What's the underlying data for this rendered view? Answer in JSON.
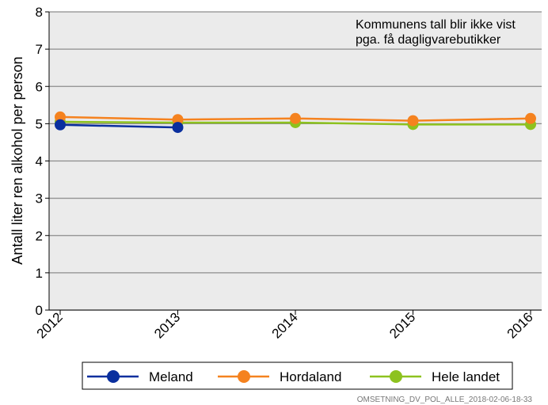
{
  "chart_data": {
    "type": "line",
    "title": "",
    "xlabel": "",
    "ylabel": "Antall liter ren alkohol per person",
    "ylim": [
      0,
      8
    ],
    "yticks": [
      "0",
      "1",
      "2",
      "3",
      "4",
      "5",
      "6",
      "7",
      "8"
    ],
    "categories": [
      "2012",
      "2013",
      "2014",
      "2015",
      "2016"
    ],
    "grid": true,
    "legend_position": "bottom",
    "annotation": [
      "Kommunens tall blir ikke vist",
      "pga. få dagligvarebutikker"
    ],
    "series": [
      {
        "name": "Meland",
        "color": "#0a2f9e",
        "values": [
          4.97,
          4.9,
          null,
          null,
          null
        ]
      },
      {
        "name": "Hordaland",
        "color": "#f5821f",
        "values": [
          5.18,
          5.11,
          5.14,
          5.08,
          5.14
        ]
      },
      {
        "name": "Hele landet",
        "color": "#8dc21f",
        "values": [
          5.05,
          5.03,
          5.03,
          4.98,
          4.98
        ]
      }
    ]
  },
  "footer": "OMSETNING_DV_POL_ALLE_2018-02-06-18-33"
}
